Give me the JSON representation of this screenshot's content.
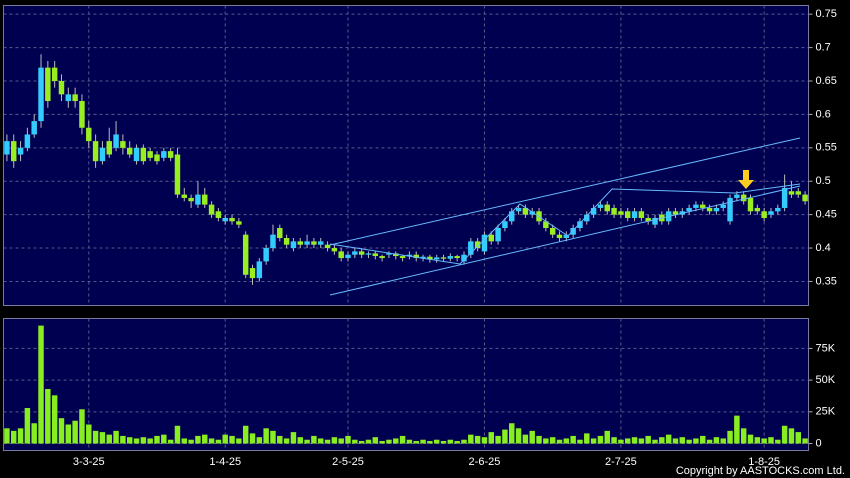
{
  "chart_data": [
    {
      "type": "candlestick",
      "categories": [
        null,
        null,
        null,
        null,
        null,
        null,
        null,
        null,
        null,
        null,
        null,
        null,
        "3-3-25",
        null,
        null,
        null,
        null,
        null,
        null,
        null,
        null,
        null,
        null,
        null,
        null,
        null,
        null,
        null,
        null,
        null,
        null,
        null,
        "1-4-25",
        null,
        null,
        null,
        null,
        null,
        null,
        null,
        null,
        null,
        null,
        null,
        null,
        null,
        null,
        null,
        null,
        null,
        "2-5-25",
        null,
        null,
        null,
        null,
        null,
        null,
        null,
        null,
        null,
        null,
        null,
        null,
        null,
        null,
        null,
        null,
        null,
        null,
        null,
        "2-6-25",
        null,
        null,
        null,
        null,
        null,
        null,
        null,
        null,
        null,
        null,
        null,
        null,
        null,
        null,
        null,
        null,
        null,
        null,
        null,
        "2-7-25",
        null,
        null,
        null,
        null,
        null,
        null,
        null,
        null,
        null,
        null,
        null,
        null,
        null,
        null,
        null,
        null,
        null,
        null,
        null,
        null,
        "1-8-25",
        null,
        null,
        null,
        null,
        null,
        null
      ],
      "open": [
        0.54,
        0.56,
        0.54,
        0.55,
        0.57,
        0.59,
        0.67,
        0.67,
        0.65,
        0.62,
        0.63,
        0.62,
        0.58,
        0.56,
        0.53,
        0.56,
        0.55,
        0.56,
        0.55,
        0.53,
        0.55,
        0.545,
        0.54,
        0.535,
        0.545,
        0.54,
        0.48,
        0.475,
        0.465,
        0.48,
        0.465,
        0.455,
        0.44,
        0.445,
        0.44,
        0.42,
        0.37,
        0.355,
        0.38,
        0.4,
        0.43,
        0.415,
        0.4,
        0.41,
        0.405,
        0.41,
        0.405,
        0.405,
        0.4,
        0.395,
        0.385,
        0.39,
        0.395,
        0.39,
        0.392,
        0.388,
        0.39,
        0.392,
        0.388,
        0.388,
        0.39,
        0.385,
        0.387,
        0.383,
        0.386,
        0.384,
        0.388,
        0.38,
        0.39,
        0.41,
        0.395,
        0.42,
        0.41,
        0.43,
        0.44,
        0.455,
        0.46,
        0.45,
        0.455,
        0.44,
        0.43,
        0.42,
        0.415,
        0.42,
        0.43,
        0.44,
        0.45,
        0.46,
        0.465,
        0.46,
        0.455,
        0.455,
        0.445,
        0.455,
        0.445,
        0.435,
        0.45,
        0.44,
        0.455,
        0.45,
        0.455,
        0.46,
        0.465,
        0.46,
        0.455,
        0.46,
        0.44,
        0.475,
        0.48,
        0.475,
        0.46,
        0.455,
        0.45,
        0.455,
        0.46,
        0.485,
        0.485,
        0.48
      ],
      "high": [
        0.57,
        0.57,
        0.56,
        0.58,
        0.6,
        0.69,
        0.68,
        0.68,
        0.66,
        0.64,
        0.64,
        0.63,
        0.59,
        0.57,
        0.56,
        0.58,
        0.59,
        0.57,
        0.56,
        0.555,
        0.555,
        0.55,
        0.545,
        0.55,
        0.55,
        0.55,
        0.49,
        0.48,
        0.5,
        0.49,
        0.47,
        0.46,
        0.45,
        0.45,
        0.445,
        0.425,
        0.375,
        0.385,
        0.405,
        0.435,
        0.435,
        0.42,
        0.415,
        0.415,
        0.42,
        0.415,
        0.415,
        0.41,
        0.405,
        0.4,
        0.395,
        0.4,
        0.4,
        0.395,
        0.395,
        0.39,
        0.395,
        0.395,
        0.39,
        0.395,
        0.395,
        0.39,
        0.39,
        0.39,
        0.39,
        0.392,
        0.39,
        0.395,
        0.415,
        0.415,
        0.425,
        0.425,
        0.435,
        0.445,
        0.46,
        0.465,
        0.465,
        0.46,
        0.46,
        0.445,
        0.435,
        0.425,
        0.425,
        0.435,
        0.445,
        0.455,
        0.465,
        0.47,
        0.47,
        0.465,
        0.46,
        0.46,
        0.46,
        0.46,
        0.45,
        0.45,
        0.455,
        0.46,
        0.46,
        0.46,
        0.465,
        0.47,
        0.47,
        0.465,
        0.465,
        0.47,
        0.48,
        0.485,
        0.485,
        0.48,
        0.465,
        0.46,
        0.46,
        0.465,
        0.51,
        0.5,
        0.49,
        0.485
      ],
      "low": [
        0.53,
        0.52,
        0.53,
        0.545,
        0.565,
        0.58,
        0.61,
        0.64,
        0.62,
        0.61,
        0.61,
        0.57,
        0.55,
        0.52,
        0.525,
        0.535,
        0.545,
        0.54,
        0.535,
        0.525,
        0.525,
        0.53,
        0.525,
        0.53,
        0.53,
        0.475,
        0.47,
        0.46,
        0.46,
        0.46,
        0.445,
        0.44,
        0.435,
        0.435,
        0.43,
        0.355,
        0.345,
        0.35,
        0.375,
        0.395,
        0.41,
        0.4,
        0.395,
        0.4,
        0.4,
        0.4,
        0.4,
        0.395,
        0.39,
        0.38,
        0.38,
        0.385,
        0.385,
        0.385,
        0.383,
        0.38,
        0.385,
        0.383,
        0.38,
        0.383,
        0.38,
        0.38,
        0.378,
        0.378,
        0.38,
        0.38,
        0.38,
        0.375,
        0.385,
        0.395,
        0.39,
        0.405,
        0.405,
        0.425,
        0.435,
        0.45,
        0.445,
        0.445,
        0.435,
        0.425,
        0.415,
        0.41,
        0.41,
        0.415,
        0.425,
        0.435,
        0.445,
        0.455,
        0.45,
        0.445,
        0.445,
        0.44,
        0.44,
        0.44,
        0.435,
        0.43,
        0.435,
        0.435,
        0.445,
        0.445,
        0.45,
        0.455,
        0.455,
        0.45,
        0.45,
        0.455,
        0.435,
        0.47,
        0.465,
        0.45,
        0.45,
        0.44,
        0.445,
        0.45,
        0.455,
        0.475,
        0.475,
        0.465
      ],
      "close": [
        0.56,
        0.53,
        0.55,
        0.57,
        0.59,
        0.67,
        0.62,
        0.65,
        0.63,
        0.63,
        0.62,
        0.58,
        0.56,
        0.53,
        0.55,
        0.54,
        0.57,
        0.55,
        0.54,
        0.55,
        0.53,
        0.535,
        0.53,
        0.545,
        0.535,
        0.48,
        0.475,
        0.47,
        0.48,
        0.465,
        0.45,
        0.445,
        0.445,
        0.44,
        0.435,
        0.36,
        0.355,
        0.38,
        0.4,
        0.42,
        0.415,
        0.405,
        0.41,
        0.405,
        0.41,
        0.405,
        0.41,
        0.4,
        0.395,
        0.385,
        0.39,
        0.395,
        0.39,
        0.392,
        0.388,
        0.385,
        0.392,
        0.388,
        0.385,
        0.39,
        0.385,
        0.387,
        0.383,
        0.386,
        0.384,
        0.388,
        0.385,
        0.39,
        0.41,
        0.4,
        0.42,
        0.41,
        0.43,
        0.44,
        0.455,
        0.46,
        0.45,
        0.455,
        0.44,
        0.43,
        0.42,
        0.415,
        0.42,
        0.43,
        0.44,
        0.45,
        0.46,
        0.465,
        0.455,
        0.45,
        0.45,
        0.445,
        0.455,
        0.445,
        0.44,
        0.445,
        0.44,
        0.455,
        0.45,
        0.455,
        0.46,
        0.465,
        0.46,
        0.455,
        0.46,
        0.465,
        0.475,
        0.48,
        0.47,
        0.455,
        0.455,
        0.445,
        0.455,
        0.46,
        0.49,
        0.48,
        0.48,
        0.47
      ],
      "up_color": "#33ccff",
      "down_color": "#99ee22",
      "ylim": [
        0.314,
        0.763
      ],
      "yticks": [
        0.35,
        0.4,
        0.45,
        0.5,
        0.55,
        0.6,
        0.65,
        0.7,
        0.75
      ],
      "grid": true
    },
    {
      "type": "bar",
      "values": [
        12000,
        10000,
        12000,
        28000,
        16000,
        93000,
        43000,
        38000,
        20000,
        15000,
        18000,
        27000,
        15000,
        10000,
        9000,
        7000,
        10000,
        6000,
        5000,
        4000,
        5000,
        4000,
        6000,
        7000,
        3000,
        14000,
        4000,
        3000,
        6000,
        7000,
        4000,
        3000,
        7000,
        6000,
        4000,
        14000,
        8000,
        5000,
        12000,
        10000,
        6000,
        4000,
        9000,
        5000,
        3000,
        6000,
        4000,
        3000,
        5000,
        4000,
        6000,
        3000,
        2000,
        3000,
        5000,
        2000,
        3000,
        4000,
        6000,
        3000,
        2000,
        3000,
        2000,
        3000,
        2000,
        3000,
        2000,
        3000,
        7000,
        6000,
        5000,
        9000,
        6000,
        11000,
        16000,
        12000,
        7000,
        10000,
        6000,
        4000,
        5000,
        3000,
        4000,
        6000,
        3000,
        8000,
        4000,
        6000,
        10000,
        5000,
        3000,
        4000,
        5000,
        4000,
        6000,
        3000,
        5000,
        7000,
        4000,
        5000,
        3000,
        4000,
        6000,
        3000,
        5000,
        4000,
        10000,
        22000,
        12000,
        7000,
        5000,
        4000,
        5000,
        3000,
        14000,
        12000,
        9000,
        4000
      ],
      "color": "#88ee22",
      "ylim": [
        -5500,
        98600
      ],
      "yticks": [
        0,
        {
          "value": 25000,
          "label": "25K"
        },
        {
          "value": 50000,
          "label": "50K"
        },
        {
          "value": 75000,
          "label": "75K"
        }
      ],
      "grid": true
    }
  ],
  "copyright": "Copyright by AASTOCKS.com Ltd."
}
